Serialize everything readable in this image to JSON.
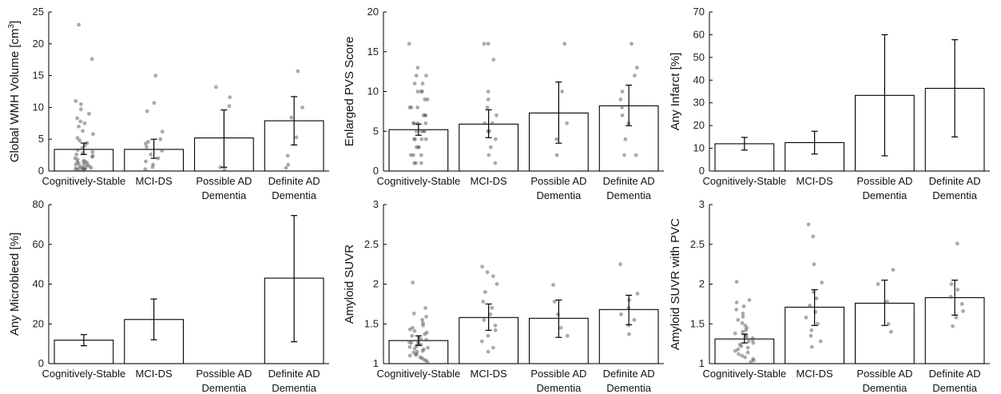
{
  "chart_data": [
    {
      "type": "bar",
      "ylabel": "Global WMH Volume [cm3]",
      "ylabel_main": "Global WMH Volume [cm",
      "ylabel_sup": "3",
      "ylabel_end": "]",
      "ylim": [
        0,
        25
      ],
      "yticks": [
        0,
        5,
        10,
        15,
        20,
        25
      ],
      "categories": [
        [
          "Cognitively-Stable"
        ],
        [
          "MCI-DS"
        ],
        [
          "Possible AD",
          "Dementia"
        ],
        [
          "Definite AD",
          "Dementia"
        ]
      ],
      "values": [
        3.4,
        3.4,
        5.2,
        7.9
      ],
      "error_low": [
        2.6,
        2.0,
        0.6,
        4.1
      ],
      "error_high": [
        4.4,
        5.0,
        9.6,
        11.7
      ],
      "points": [
        [
          0.1,
          0.2,
          0.2,
          0.3,
          0.3,
          0.4,
          0.4,
          0.5,
          0.5,
          0.6,
          0.7,
          0.8,
          0.9,
          1.0,
          1.1,
          1.2,
          1.3,
          1.4,
          1.5,
          1.6,
          1.8,
          2.0,
          2.2,
          2.4,
          2.6,
          2.8,
          3.0,
          3.3,
          3.6,
          4.0,
          4.4,
          4.8,
          5.2,
          5.8,
          6.3,
          7.0,
          7.5,
          7.8,
          8.3,
          9.0,
          9.7,
          10.5,
          11.0,
          17.6,
          23.0
        ],
        [
          0.3,
          0.6,
          1.0,
          1.5,
          2.0,
          2.6,
          3.2,
          3.8,
          4.3,
          4.6,
          5.0,
          6.2,
          9.4,
          10.7,
          15.0
        ],
        [
          0.3,
          0.6,
          10.2,
          11.6,
          13.2
        ],
        [
          0.5,
          1.0,
          2.4,
          5.3,
          8.4,
          10.0,
          15.7
        ]
      ]
    },
    {
      "type": "bar",
      "ylabel": "Enlarged PVS Score",
      "ylim": [
        0,
        20
      ],
      "yticks": [
        0,
        5,
        10,
        15,
        20
      ],
      "categories": [
        [
          "Cognitively-Stable"
        ],
        [
          "MCI-DS"
        ],
        [
          "Possible AD",
          "Dementia"
        ],
        [
          "Definite AD",
          "Dementia"
        ]
      ],
      "values": [
        5.2,
        5.9,
        7.3,
        8.2
      ],
      "error_low": [
        4.5,
        4.2,
        3.5,
        5.7
      ],
      "error_high": [
        5.9,
        7.7,
        11.2,
        10.8
      ],
      "points": [
        [
          1,
          1,
          1,
          2,
          2,
          2,
          3,
          3,
          3,
          4,
          4,
          4,
          4,
          5,
          5,
          5,
          5,
          6,
          6,
          6,
          6,
          7,
          7,
          7,
          8,
          8,
          8,
          9,
          9,
          10,
          10,
          10,
          11,
          11,
          12,
          12,
          13,
          16
        ],
        [
          1,
          2,
          3,
          4,
          5,
          5,
          6,
          6,
          7,
          8,
          9,
          10,
          14,
          16,
          16
        ],
        [
          2,
          4,
          6,
          10,
          16
        ],
        [
          2,
          2,
          4,
          6,
          7,
          8,
          9,
          10,
          12,
          13,
          16
        ]
      ]
    },
    {
      "type": "bar",
      "ylabel": "Any Infarct [%]",
      "ylim": [
        0,
        70
      ],
      "yticks": [
        0,
        10,
        20,
        30,
        40,
        50,
        60,
        70
      ],
      "categories": [
        [
          "Cognitively-Stable"
        ],
        [
          "MCI-DS"
        ],
        [
          "Possible AD",
          "Dementia"
        ],
        [
          "Definite AD",
          "Dementia"
        ]
      ],
      "values": [
        12,
        12.5,
        33.3,
        36.4
      ],
      "error_low": [
        9.2,
        7.5,
        6.7,
        15
      ],
      "error_high": [
        14.8,
        17.5,
        60,
        57.8
      ],
      "points": [
        [],
        [],
        [],
        []
      ]
    },
    {
      "type": "bar",
      "ylabel": "Any Microbleed [%]",
      "ylim": [
        0,
        80
      ],
      "yticks": [
        0,
        20,
        40,
        60,
        80
      ],
      "categories": [
        [
          "Cognitively-Stable"
        ],
        [
          "MCI-DS"
        ],
        [
          "Possible AD",
          "Dementia"
        ],
        [
          "Definite AD",
          "Dementia"
        ]
      ],
      "values": [
        11.8,
        22.2,
        0,
        43
      ],
      "error_low": [
        9,
        12,
        0,
        11
      ],
      "error_high": [
        14.6,
        32.5,
        0,
        74.5
      ],
      "points": [
        [],
        [],
        [],
        []
      ]
    },
    {
      "type": "bar",
      "ylabel": "Amyloid SUVR",
      "ylim": [
        1,
        3
      ],
      "yticks": [
        1,
        1.5,
        2,
        2.5,
        3
      ],
      "categories": [
        [
          "Cognitively-Stable"
        ],
        [
          "MCI-DS"
        ],
        [
          "Possible AD",
          "Dementia"
        ],
        [
          "Definite AD",
          "Dementia"
        ]
      ],
      "values": [
        1.29,
        1.58,
        1.57,
        1.68
      ],
      "error_low": [
        1.23,
        1.42,
        1.33,
        1.49
      ],
      "error_high": [
        1.35,
        1.75,
        1.8,
        1.86
      ],
      "points": [
        [
          1.02,
          1.04,
          1.05,
          1.07,
          1.08,
          1.1,
          1.11,
          1.12,
          1.14,
          1.15,
          1.16,
          1.18,
          1.19,
          1.2,
          1.21,
          1.22,
          1.24,
          1.25,
          1.26,
          1.27,
          1.28,
          1.3,
          1.31,
          1.33,
          1.35,
          1.37,
          1.39,
          1.41,
          1.43,
          1.45,
          1.48,
          1.51,
          1.55,
          1.59,
          1.63,
          1.7,
          2.02
        ],
        [
          1.15,
          1.2,
          1.28,
          1.35,
          1.42,
          1.48,
          1.55,
          1.62,
          1.7,
          1.78,
          1.9,
          2.0,
          2.1,
          2.15,
          2.22
        ],
        [
          1.35,
          1.45,
          1.62,
          1.78,
          1.99
        ],
        [
          1.37,
          1.48,
          1.55,
          1.62,
          1.7,
          1.8,
          1.88,
          2.25
        ]
      ]
    },
    {
      "type": "bar",
      "ylabel": "Amyloid SUVR with PVC",
      "ylim": [
        1,
        3
      ],
      "yticks": [
        1,
        1.5,
        2,
        2.5,
        3
      ],
      "categories": [
        [
          "Cognitively-Stable"
        ],
        [
          "MCI-DS"
        ],
        [
          "Possible AD",
          "Dementia"
        ],
        [
          "Definite AD",
          "Dementia"
        ]
      ],
      "values": [
        1.31,
        1.71,
        1.76,
        1.83
      ],
      "error_low": [
        1.26,
        1.48,
        1.48,
        1.61
      ],
      "error_high": [
        1.37,
        1.93,
        2.05,
        2.05
      ],
      "points": [
        [
          1.02,
          1.04,
          1.06,
          1.08,
          1.1,
          1.12,
          1.14,
          1.16,
          1.18,
          1.2,
          1.22,
          1.24,
          1.26,
          1.28,
          1.3,
          1.32,
          1.34,
          1.36,
          1.38,
          1.4,
          1.42,
          1.45,
          1.48,
          1.51,
          1.55,
          1.59,
          1.63,
          1.68,
          1.72,
          1.77,
          1.8,
          2.03
        ],
        [
          1.21,
          1.28,
          1.35,
          1.42,
          1.5,
          1.58,
          1.65,
          1.73,
          1.82,
          1.9,
          2.02,
          2.25,
          2.6,
          2.75
        ],
        [
          1.4,
          1.5,
          1.78,
          2.0,
          2.18
        ],
        [
          1.47,
          1.58,
          1.66,
          1.75,
          1.84,
          1.93,
          2.0,
          2.51
        ]
      ]
    }
  ]
}
